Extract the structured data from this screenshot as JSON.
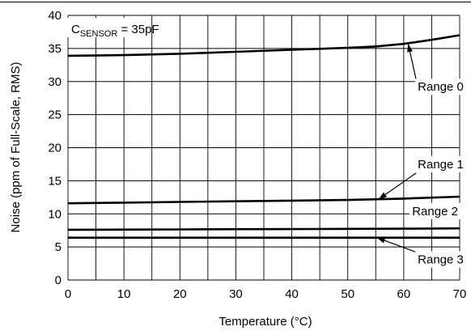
{
  "chart_data": {
    "type": "line",
    "xlabel": "Temperature (°C)",
    "ylabel": "Noise (ppm of Full-Scale, RMS)",
    "xlim": [
      0,
      70
    ],
    "ylim": [
      0,
      40
    ],
    "xticks": [
      0,
      10,
      20,
      30,
      40,
      50,
      60,
      70
    ],
    "yticks": [
      0,
      5,
      10,
      15,
      20,
      25,
      30,
      35,
      40
    ],
    "grid": true,
    "annotation": {
      "main": "C",
      "sub": "SENSOR",
      "tail": " = 35pF"
    },
    "series": [
      {
        "name": "Range 0",
        "x": [
          0,
          10,
          20,
          30,
          40,
          50,
          55,
          60,
          65,
          70
        ],
        "y": [
          33.9,
          34.0,
          34.2,
          34.5,
          34.8,
          35.1,
          35.3,
          35.7,
          36.3,
          37.0
        ]
      },
      {
        "name": "Range 1",
        "x": [
          0,
          10,
          20,
          30,
          40,
          50,
          60,
          70
        ],
        "y": [
          11.6,
          11.7,
          11.8,
          11.9,
          12.0,
          12.1,
          12.3,
          12.6
        ]
      },
      {
        "name": "Range 2",
        "x": [
          0,
          10,
          20,
          30,
          40,
          50,
          60,
          70
        ],
        "y": [
          7.6,
          7.62,
          7.65,
          7.68,
          7.7,
          7.73,
          7.76,
          7.8
        ]
      },
      {
        "name": "Range 3",
        "x": [
          0,
          10,
          20,
          30,
          40,
          50,
          60,
          70
        ],
        "y": [
          6.4,
          6.4,
          6.4,
          6.4,
          6.4,
          6.4,
          6.4,
          6.4
        ]
      }
    ],
    "series_labels": [
      {
        "text": "Range 0",
        "label_at": [
          62.5,
          28.6
        ],
        "arrow_to": [
          60.8,
          35.7
        ]
      },
      {
        "text": "Range 1",
        "label_at": [
          62.5,
          16.9
        ],
        "arrow_to": [
          55.5,
          12.2
        ]
      },
      {
        "text": "Range 2",
        "label_at": [
          61.5,
          9.8
        ],
        "arrow_to": null
      },
      {
        "text": "Range 3",
        "label_at": [
          62.5,
          2.5
        ],
        "arrow_to": [
          55.2,
          6.4
        ]
      }
    ]
  }
}
